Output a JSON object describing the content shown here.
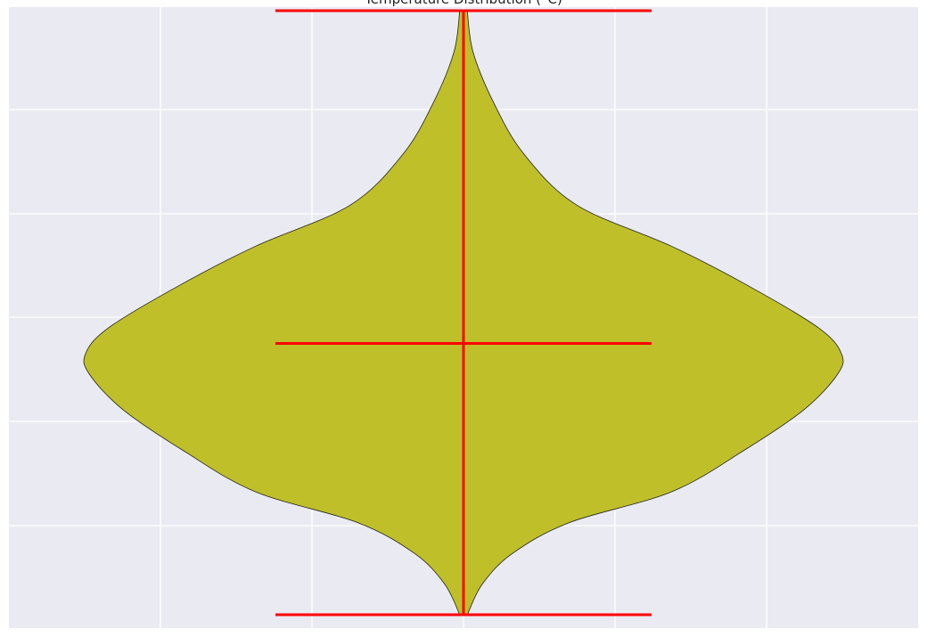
{
  "chart_data": {
    "type": "violin",
    "title": "Temperature Distribution (°C)",
    "xlabel": "",
    "ylabel": "",
    "grid": true,
    "background_color": "#eaeaf2",
    "grid_color": "#ffffff",
    "series": [
      {
        "fill_color": "#bfbf2a",
        "edge_color": "#222222",
        "line_color": "#ff0000",
        "min": 0.0,
        "max": 5.9,
        "mean": 2.65,
        "density_profile": [
          {
            "y": 0.0,
            "w": 0.01
          },
          {
            "y": 0.3,
            "w": 0.05
          },
          {
            "y": 0.6,
            "w": 0.13
          },
          {
            "y": 0.9,
            "w": 0.28
          },
          {
            "y": 1.2,
            "w": 0.55
          },
          {
            "y": 1.6,
            "w": 0.74
          },
          {
            "y": 2.0,
            "w": 0.9
          },
          {
            "y": 2.35,
            "w": 0.99
          },
          {
            "y": 2.55,
            "w": 1.0
          },
          {
            "y": 2.8,
            "w": 0.94
          },
          {
            "y": 3.2,
            "w": 0.76
          },
          {
            "y": 3.6,
            "w": 0.55
          },
          {
            "y": 4.0,
            "w": 0.3
          },
          {
            "y": 4.5,
            "w": 0.16
          },
          {
            "y": 5.0,
            "w": 0.08
          },
          {
            "y": 5.5,
            "w": 0.025
          },
          {
            "y": 5.9,
            "w": 0.01
          }
        ]
      }
    ]
  }
}
